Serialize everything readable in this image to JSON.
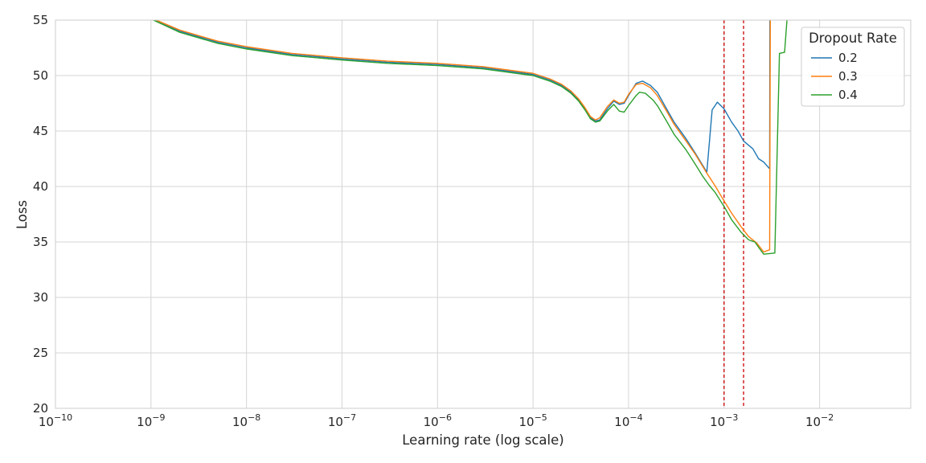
{
  "chart_data": {
    "type": "line",
    "xlabel": "Learning rate (log scale)",
    "ylabel": "Loss",
    "xscale": "log",
    "xlim": [
      1e-10,
      0.09
    ],
    "ylim": [
      20,
      55
    ],
    "x_ticks": [
      1e-10,
      1e-09,
      1e-08,
      1e-07,
      1e-06,
      1e-05,
      0.0001,
      0.001,
      0.01
    ],
    "y_ticks": [
      20,
      25,
      30,
      35,
      40,
      45,
      50,
      55
    ],
    "grid": true,
    "legend": {
      "title": "Dropout Rate",
      "placement": "top-right"
    },
    "vlines": [
      {
        "x": 0.001,
        "color": "#cc0000",
        "style": "dashed"
      },
      {
        "x": 0.0016,
        "color": "#cc0000",
        "style": "dashed"
      }
    ],
    "series": [
      {
        "name": "0.2",
        "color": "#1f77b4",
        "points": [
          [
            1e-09,
            55.2
          ],
          [
            2e-09,
            54.0
          ],
          [
            5e-09,
            53.0
          ],
          [
            1e-08,
            52.5
          ],
          [
            3e-08,
            51.9
          ],
          [
            1e-07,
            51.5
          ],
          [
            3e-07,
            51.2
          ],
          [
            1e-06,
            51.0
          ],
          [
            3e-06,
            50.7
          ],
          [
            1e-05,
            50.1
          ],
          [
            1.5e-05,
            49.6
          ],
          [
            2e-05,
            49.1
          ],
          [
            2.5e-05,
            48.5
          ],
          [
            3e-05,
            47.8
          ],
          [
            3.5e-05,
            47.0
          ],
          [
            4e-05,
            46.2
          ],
          [
            4.5e-05,
            45.9
          ],
          [
            5e-05,
            46.0
          ],
          [
            6e-05,
            47.0
          ],
          [
            7e-05,
            47.7
          ],
          [
            8e-05,
            47.4
          ],
          [
            9e-05,
            47.5
          ],
          [
            0.0001,
            48.2
          ],
          [
            0.00012,
            49.3
          ],
          [
            0.00014,
            49.5
          ],
          [
            0.00017,
            49.1
          ],
          [
            0.0002,
            48.5
          ],
          [
            0.00025,
            47.0
          ],
          [
            0.0003,
            45.8
          ],
          [
            0.0004,
            44.3
          ],
          [
            0.0005,
            43.0
          ],
          [
            0.00066,
            41.3
          ],
          [
            0.00075,
            46.9
          ],
          [
            0.00085,
            47.6
          ],
          [
            0.001,
            47.0
          ],
          [
            0.0012,
            45.8
          ],
          [
            0.0014,
            45.0
          ],
          [
            0.0016,
            44.1
          ],
          [
            0.002,
            43.4
          ],
          [
            0.0023,
            42.5
          ],
          [
            0.0026,
            42.2
          ],
          [
            0.003,
            41.6
          ],
          [
            0.00302,
            55.5
          ]
        ]
      },
      {
        "name": "0.3",
        "color": "#ff7f0e",
        "points": [
          [
            1e-09,
            55.2
          ],
          [
            2e-09,
            54.1
          ],
          [
            5e-09,
            53.1
          ],
          [
            1e-08,
            52.6
          ],
          [
            3e-08,
            52.0
          ],
          [
            1e-07,
            51.6
          ],
          [
            3e-07,
            51.3
          ],
          [
            1e-06,
            51.1
          ],
          [
            3e-06,
            50.8
          ],
          [
            1e-05,
            50.2
          ],
          [
            1.5e-05,
            49.7
          ],
          [
            2e-05,
            49.2
          ],
          [
            2.5e-05,
            48.6
          ],
          [
            3e-05,
            47.9
          ],
          [
            3.5e-05,
            47.1
          ],
          [
            4e-05,
            46.3
          ],
          [
            4.5e-05,
            46.0
          ],
          [
            5e-05,
            46.2
          ],
          [
            6e-05,
            47.2
          ],
          [
            7e-05,
            47.8
          ],
          [
            8e-05,
            47.5
          ],
          [
            9e-05,
            47.6
          ],
          [
            0.0001,
            48.3
          ],
          [
            0.00012,
            49.2
          ],
          [
            0.00014,
            49.3
          ],
          [
            0.00017,
            48.9
          ],
          [
            0.0002,
            48.2
          ],
          [
            0.00025,
            46.8
          ],
          [
            0.0003,
            45.6
          ],
          [
            0.0004,
            44.1
          ],
          [
            0.0005,
            42.9
          ],
          [
            0.00066,
            41.2
          ],
          [
            0.0008,
            40.1
          ],
          [
            0.001,
            38.7
          ],
          [
            0.0012,
            37.6
          ],
          [
            0.0015,
            36.4
          ],
          [
            0.0018,
            35.5
          ],
          [
            0.0022,
            34.9
          ],
          [
            0.0026,
            34.1
          ],
          [
            0.003,
            34.3
          ],
          [
            0.00305,
            55.5
          ]
        ]
      },
      {
        "name": "0.4",
        "color": "#2ca02c",
        "points": [
          [
            1e-09,
            55.1
          ],
          [
            2e-09,
            53.9
          ],
          [
            5e-09,
            52.9
          ],
          [
            1e-08,
            52.4
          ],
          [
            3e-08,
            51.8
          ],
          [
            1e-07,
            51.4
          ],
          [
            3e-07,
            51.1
          ],
          [
            1e-06,
            50.9
          ],
          [
            3e-06,
            50.6
          ],
          [
            1e-05,
            50.0
          ],
          [
            1.5e-05,
            49.5
          ],
          [
            2e-05,
            49.0
          ],
          [
            2.5e-05,
            48.4
          ],
          [
            3e-05,
            47.7
          ],
          [
            3.5e-05,
            46.9
          ],
          [
            4e-05,
            46.1
          ],
          [
            4.5e-05,
            45.8
          ],
          [
            5e-05,
            45.9
          ],
          [
            6e-05,
            46.8
          ],
          [
            7e-05,
            47.4
          ],
          [
            8e-05,
            46.8
          ],
          [
            9e-05,
            46.7
          ],
          [
            0.0001,
            47.3
          ],
          [
            0.00012,
            48.2
          ],
          [
            0.00013,
            48.5
          ],
          [
            0.00015,
            48.4
          ],
          [
            0.00018,
            47.8
          ],
          [
            0.0002,
            47.3
          ],
          [
            0.00025,
            45.9
          ],
          [
            0.0003,
            44.7
          ],
          [
            0.0004,
            43.3
          ],
          [
            0.0005,
            42.0
          ],
          [
            0.0006,
            40.9
          ],
          [
            0.0007,
            40.1
          ],
          [
            0.0008,
            39.5
          ],
          [
            0.001,
            38.2
          ],
          [
            0.0012,
            37.0
          ],
          [
            0.0015,
            35.9
          ],
          [
            0.0018,
            35.2
          ],
          [
            0.0021,
            35.0
          ],
          [
            0.0024,
            34.3
          ],
          [
            0.0026,
            33.9
          ],
          [
            0.0034,
            34.0
          ],
          [
            0.0038,
            52.0
          ],
          [
            0.0043,
            52.1
          ],
          [
            0.0046,
            55.5
          ]
        ]
      }
    ]
  }
}
